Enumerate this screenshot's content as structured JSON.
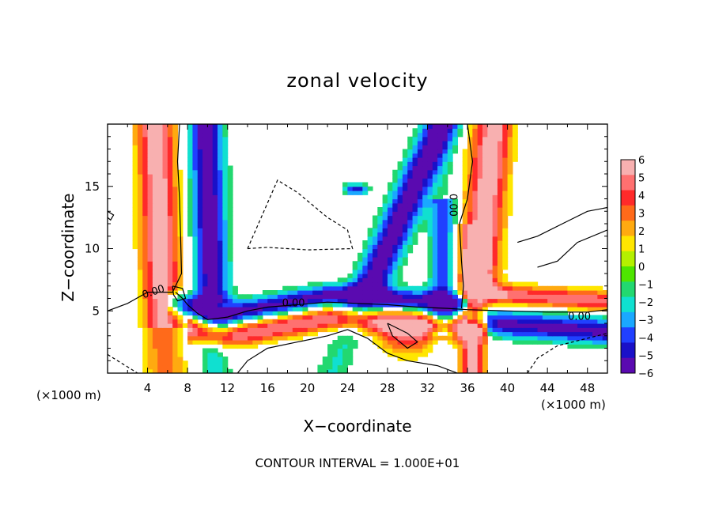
{
  "chart_data": {
    "type": "heatmap",
    "title": "zonal velocity",
    "xlabel": "X−coordinate",
    "ylabel": "Z−coordinate",
    "x_unit": "(×1000 m)",
    "x_ticks": [
      4,
      8,
      12,
      16,
      20,
      24,
      28,
      32,
      36,
      40,
      44,
      48
    ],
    "y_ticks": [
      5,
      10,
      15
    ],
    "xlim": [
      0,
      50
    ],
    "ylim": [
      0,
      20
    ],
    "colorbar": {
      "ticks": [
        6,
        5,
        4,
        3,
        2,
        1,
        0,
        -1,
        -2,
        -3,
        -4,
        -5,
        -6
      ],
      "range": [
        -6,
        6
      ],
      "colors": [
        "#f8b0b0",
        "#ff7070",
        "#ff2a2a",
        "#ff6a1a",
        "#ffaa10",
        "#ffe600",
        "#b4f000",
        "#4ee500",
        "#22d870",
        "#10e0d0",
        "#1aa8ff",
        "#2040ff",
        "#1a10c8",
        "#5a0ab0"
      ]
    },
    "contour_labels": [
      "0.00",
      "0.00",
      "0.00",
      "0.00"
    ],
    "footer": "CONTOUR INTERVAL = 1.000E+01",
    "field_features": [
      {
        "x": 5.0,
        "z": 14,
        "value": 5.5,
        "note": "left positive jet"
      },
      {
        "x": 9.5,
        "z": 14,
        "value": -5.5,
        "note": "left negative jet"
      },
      {
        "x": 27,
        "z": 4.5,
        "value": 5.0,
        "note": "low positive band"
      },
      {
        "x": 32,
        "z": 16,
        "value": -5.5,
        "note": "upper negative core"
      },
      {
        "x": 38,
        "z": 15,
        "value": 5.0,
        "note": "right positive jet"
      },
      {
        "x": 40,
        "z": 4,
        "value": -5.0,
        "note": "right lower negative"
      }
    ]
  }
}
